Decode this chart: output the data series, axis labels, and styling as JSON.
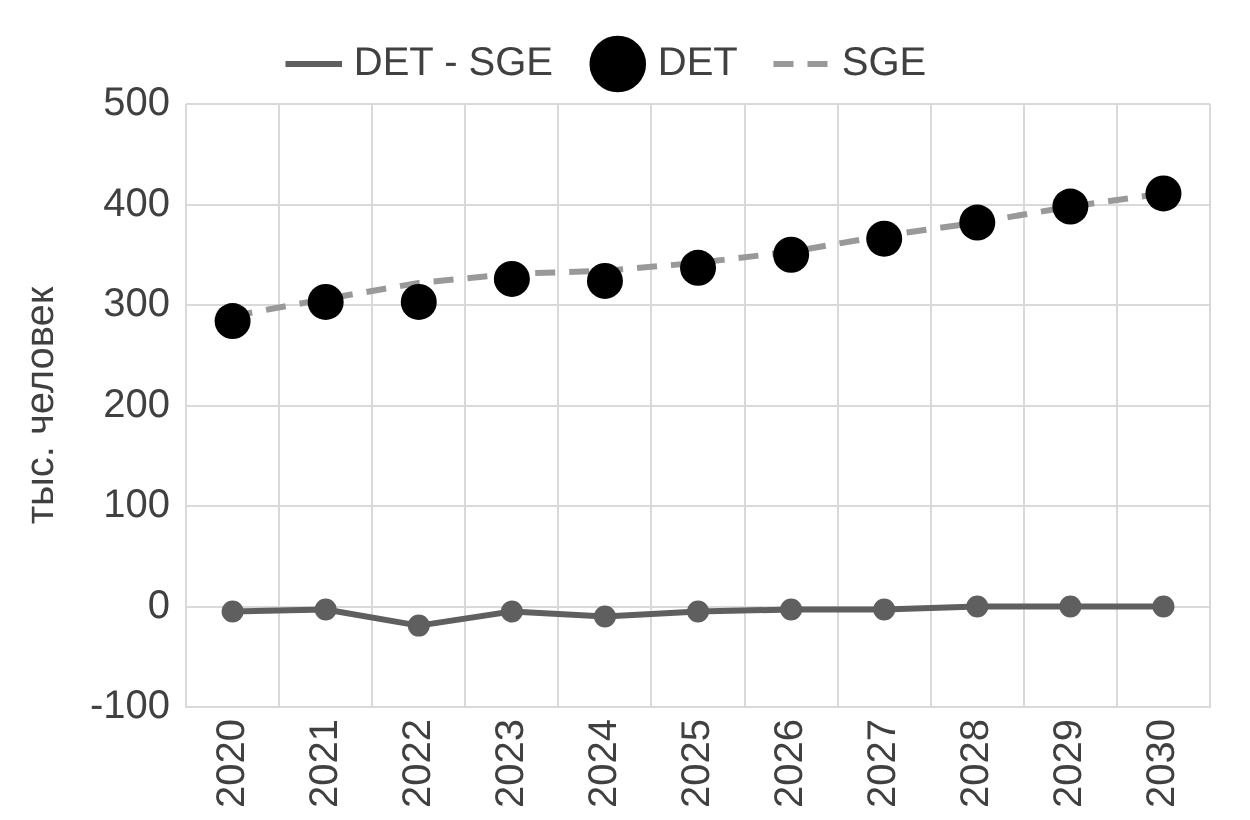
{
  "chart_data": {
    "type": "line",
    "ylabel": "тыс. человек",
    "categories": [
      "2020",
      "2021",
      "2022",
      "2023",
      "2024",
      "2025",
      "2026",
      "2027",
      "2028",
      "2029",
      "2030"
    ],
    "series": [
      {
        "name": "DET - SGE",
        "color": "#5f5f5f",
        "marker": "circle",
        "line_style": "solid",
        "values": [
          -5,
          -3,
          -19,
          -5,
          -10,
          -5,
          -3,
          -3,
          0,
          0,
          0
        ]
      },
      {
        "name": "DET",
        "type": "scatter",
        "color": "#000000",
        "marker": "circle",
        "values": [
          284,
          303,
          303,
          326,
          324,
          337,
          350,
          366,
          382,
          398,
          411
        ]
      },
      {
        "name": "SGE",
        "color": "#999999",
        "marker": "none",
        "line_style": "dashed",
        "values": [
          289,
          306,
          322,
          331,
          334,
          342,
          353,
          369,
          382,
          398,
          411
        ]
      }
    ],
    "ylim": [
      -100,
      500
    ],
    "yticks": [
      -100,
      0,
      100,
      200,
      300,
      400,
      500
    ],
    "grid": true,
    "legend": "top"
  }
}
